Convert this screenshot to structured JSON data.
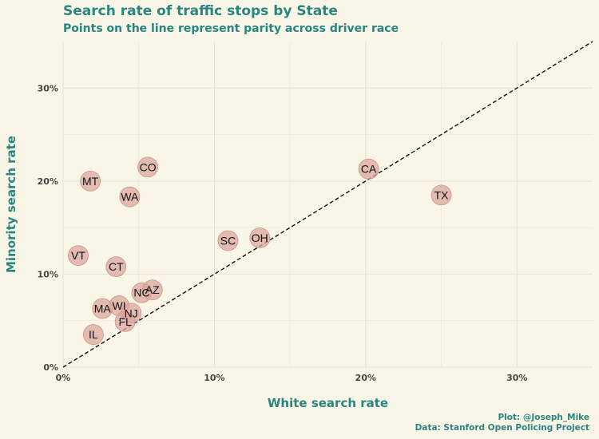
{
  "chart_data": {
    "type": "scatter",
    "title": "Search rate of traffic stops by State",
    "subtitle": "Points on the line represent parity across driver race",
    "xlabel": "White search rate",
    "ylabel": "Minority search rate",
    "xlim": [
      0,
      0.35
    ],
    "ylim": [
      0,
      0.35
    ],
    "x_ticks": [
      0,
      0.1,
      0.2,
      0.3
    ],
    "x_tick_labels": [
      "0%",
      "10%",
      "20%",
      "30%"
    ],
    "y_ticks": [
      0,
      0.1,
      0.2,
      0.3
    ],
    "y_tick_labels": [
      "0%",
      "10%",
      "20%",
      "30%"
    ],
    "grid": true,
    "reference_line": "y = x",
    "point_color": "#dba79e",
    "point_outline": "#c9948c",
    "line_color": "#111111",
    "grid_color": "#e5e2d3",
    "points": [
      {
        "label": "MT",
        "x": 0.018,
        "y": 0.2
      },
      {
        "label": "CO",
        "x": 0.056,
        "y": 0.215
      },
      {
        "label": "WA",
        "x": 0.044,
        "y": 0.183
      },
      {
        "label": "VT",
        "x": 0.01,
        "y": 0.12
      },
      {
        "label": "CT",
        "x": 0.035,
        "y": 0.108
      },
      {
        "label": "NC",
        "x": 0.052,
        "y": 0.08
      },
      {
        "label": "AZ",
        "x": 0.059,
        "y": 0.083
      },
      {
        "label": "WI",
        "x": 0.037,
        "y": 0.066
      },
      {
        "label": "MA",
        "x": 0.026,
        "y": 0.063
      },
      {
        "label": "NJ",
        "x": 0.045,
        "y": 0.058
      },
      {
        "label": "FL",
        "x": 0.041,
        "y": 0.049
      },
      {
        "label": "IL",
        "x": 0.02,
        "y": 0.035
      },
      {
        "label": "SC",
        "x": 0.109,
        "y": 0.136
      },
      {
        "label": "OH",
        "x": 0.13,
        "y": 0.139
      },
      {
        "label": "CA",
        "x": 0.202,
        "y": 0.213
      },
      {
        "label": "TX",
        "x": 0.25,
        "y": 0.185
      }
    ]
  },
  "caption": {
    "line1": "Plot: @Joseph_Mike",
    "line2": "Data: Stanford Open Policing Project"
  }
}
